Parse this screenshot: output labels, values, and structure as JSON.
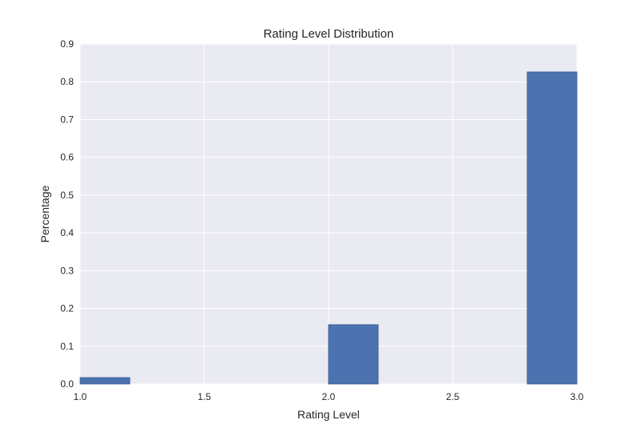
{
  "chart_data": {
    "type": "bar",
    "title": "Rating Level Distribution",
    "xlabel": "Rating Level",
    "ylabel": "Percentage",
    "xlim": [
      1.0,
      3.0
    ],
    "ylim": [
      0.0,
      0.9
    ],
    "x_ticks": [
      "1.0",
      "1.5",
      "2.0",
      "2.5",
      "3.0"
    ],
    "y_ticks": [
      "0.0",
      "0.1",
      "0.2",
      "0.3",
      "0.4",
      "0.5",
      "0.6",
      "0.7",
      "0.8",
      "0.9"
    ],
    "bars": [
      {
        "x_start": 1.0,
        "x_end": 1.2,
        "value": 0.017
      },
      {
        "x_start": 2.0,
        "x_end": 2.2,
        "value": 0.157
      },
      {
        "x_start": 2.8,
        "x_end": 3.0,
        "value": 0.826
      }
    ],
    "grid": true,
    "colors": {
      "bar_fill": "#4c72b0",
      "bar_edge": "#3a5a8c",
      "plot_background": "#eaeaf2",
      "grid": "#ffffff",
      "text": "#262626"
    }
  }
}
